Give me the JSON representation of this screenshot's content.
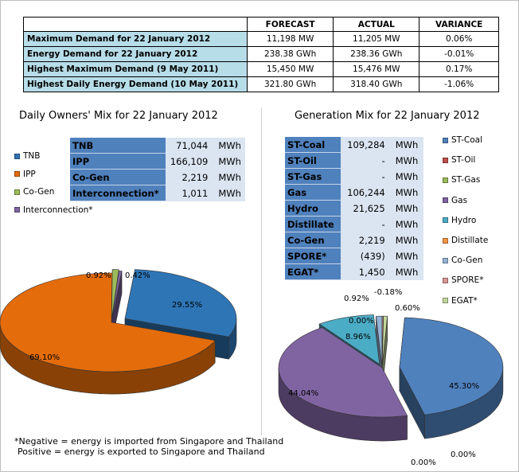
{
  "summary": {
    "headers": [
      "FORECAST",
      "ACTUAL",
      "VARIANCE"
    ],
    "rows": [
      {
        "label": "Maximum Demand for 22 January 2012",
        "forecast": "11,198  MW",
        "actual": "11,205  MW",
        "variance": "0.06%"
      },
      {
        "label": "Energy Demand for 22 January 2012",
        "forecast": "238.38  GWh",
        "actual": "238.36  GWh",
        "variance": "-0.01%"
      },
      {
        "label": "Highest Maximum Demand (9 May 2011)",
        "forecast": "15,450  MW",
        "actual": "15,476  MW",
        "variance": "0.17%"
      },
      {
        "label": "Highest Daily Energy Demand (10 May 2011)",
        "forecast": "321.80  GWh",
        "actual": "318.40  GWh",
        "variance": "-1.06%"
      }
    ]
  },
  "owners": {
    "title": "Daily Owners' Mix for 22 January 2012",
    "legend": [
      {
        "name": "TNB",
        "color": "#2e75b6"
      },
      {
        "name": "IPP",
        "color": "#e46c0a"
      },
      {
        "name": "Co-Gen",
        "color": "#9bbb59"
      },
      {
        "name": "Interconnection*",
        "color": "#8064a2"
      }
    ],
    "table": [
      {
        "name": "TNB",
        "value": "71,044",
        "unit": "MWh"
      },
      {
        "name": "IPP",
        "value": "166,109",
        "unit": "MWh"
      },
      {
        "name": "Co-Gen",
        "value": "2,219",
        "unit": "MWh"
      },
      {
        "name": "Interconnection*",
        "value": "1,011",
        "unit": "MWh"
      }
    ]
  },
  "generation": {
    "title": "Generation Mix for 22 January 2012",
    "legend": [
      {
        "name": "ST-Coal",
        "color": "#4f81bd"
      },
      {
        "name": "ST-Oil",
        "color": "#c0504d"
      },
      {
        "name": "ST-Gas",
        "color": "#9bbb59"
      },
      {
        "name": "Gas",
        "color": "#8064a2"
      },
      {
        "name": "Hydro",
        "color": "#4bacc6"
      },
      {
        "name": "Distillate",
        "color": "#f79646"
      },
      {
        "name": "Co-Gen",
        "color": "#95b3d7"
      },
      {
        "name": "SPORE*",
        "color": "#d99694"
      },
      {
        "name": "EGAT*",
        "color": "#c3d69b"
      }
    ],
    "table": [
      {
        "name": "ST-Coal",
        "value": "109,284",
        "unit": "MWh"
      },
      {
        "name": "ST-Oil",
        "value": "-",
        "unit": "MWh"
      },
      {
        "name": "ST-Gas",
        "value": "-",
        "unit": "MWh"
      },
      {
        "name": "Gas",
        "value": "106,244",
        "unit": "MWh"
      },
      {
        "name": "Hydro",
        "value": "21,625",
        "unit": "MWh"
      },
      {
        "name": "Distillate",
        "value": "-",
        "unit": "MWh"
      },
      {
        "name": "Co-Gen",
        "value": "2,219",
        "unit": "MWh"
      },
      {
        "name": "SPORE*",
        "value": "(439)",
        "unit": "MWh"
      },
      {
        "name": "EGAT*",
        "value": "1,450",
        "unit": "MWh"
      }
    ]
  },
  "chart_data": [
    {
      "type": "pie",
      "title": "Daily Owners' Mix for 22 January 2012",
      "categories": [
        "TNB",
        "IPP",
        "Co-Gen",
        "Interconnection*"
      ],
      "values": [
        29.55,
        69.1,
        0.92,
        0.42
      ],
      "labels": [
        "29.55%",
        "69.10%",
        "0.92%",
        "0.42%"
      ],
      "colors": [
        "#2e75b6",
        "#e46c0a",
        "#9bbb59",
        "#8064a2"
      ],
      "legend": "left"
    },
    {
      "type": "pie",
      "title": "Generation Mix for 22 January 2012",
      "categories": [
        "ST-Coal",
        "ST-Oil",
        "ST-Gas",
        "Gas",
        "Hydro",
        "Distillate",
        "Co-Gen",
        "SPORE*",
        "EGAT*"
      ],
      "values": [
        45.3,
        0.0,
        0.0,
        44.04,
        8.96,
        0.0,
        0.92,
        -0.18,
        0.6
      ],
      "labels": [
        "45.30%",
        "0.00%",
        "0.00%",
        "44.04%",
        "8.96%",
        "0.00%",
        "0.92%",
        "-0.18%",
        "0.60%"
      ],
      "colors": [
        "#4f81bd",
        "#c0504d",
        "#9bbb59",
        "#8064a2",
        "#4bacc6",
        "#f79646",
        "#95b3d7",
        "#d99694",
        "#c3d69b"
      ],
      "legend": "right"
    }
  ],
  "footnote": {
    "line1": "*Negative = energy is imported from Singapore and Thailand",
    "line2": "Positive = energy is exported to Singapore and Thailand"
  }
}
